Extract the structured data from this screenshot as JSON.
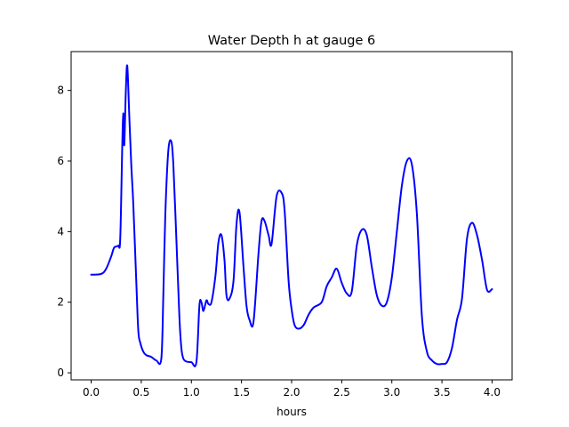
{
  "chart_data": {
    "type": "line",
    "title": "Water Depth h at gauge 6",
    "xlabel": "hours",
    "ylabel": "",
    "xlim": [
      -0.2,
      4.2
    ],
    "ylim": [
      -0.2,
      9.1
    ],
    "x_ticks": [
      0.0,
      0.5,
      1.0,
      1.5,
      2.0,
      2.5,
      3.0,
      3.5,
      4.0
    ],
    "x_tick_labels": [
      "0.0",
      "0.5",
      "1.0",
      "1.5",
      "2.0",
      "2.5",
      "3.0",
      "3.5",
      "4.0"
    ],
    "y_ticks": [
      0,
      2,
      4,
      6,
      8
    ],
    "y_tick_labels": [
      "0",
      "2",
      "4",
      "6",
      "8"
    ],
    "grid": false,
    "legend": "none",
    "line_color": "#0000ff",
    "series": [
      {
        "x": [
          0.0,
          0.1,
          0.15,
          0.2,
          0.23,
          0.27,
          0.29,
          0.31,
          0.32,
          0.33,
          0.345,
          0.36,
          0.38,
          0.4,
          0.42,
          0.45,
          0.47,
          0.49,
          0.52,
          0.55,
          0.6,
          0.65,
          0.7,
          0.72,
          0.74,
          0.77,
          0.8,
          0.82,
          0.85,
          0.88,
          0.9,
          0.92,
          0.95,
          1.0,
          1.05,
          1.08,
          1.1,
          1.12,
          1.15,
          1.17,
          1.2,
          1.24,
          1.27,
          1.3,
          1.33,
          1.35,
          1.38,
          1.42,
          1.45,
          1.48,
          1.52,
          1.55,
          1.58,
          1.62,
          1.67,
          1.7,
          1.73,
          1.77,
          1.8,
          1.85,
          1.9,
          1.93,
          1.97,
          2.0,
          2.03,
          2.07,
          2.12,
          2.17,
          2.22,
          2.3,
          2.35,
          2.4,
          2.45,
          2.5,
          2.55,
          2.6,
          2.65,
          2.7,
          2.75,
          2.8,
          2.85,
          2.9,
          2.95,
          3.0,
          3.05,
          3.1,
          3.15,
          3.2,
          3.25,
          3.3,
          3.35,
          3.4,
          3.45,
          3.5,
          3.55,
          3.6,
          3.65,
          3.7,
          3.75,
          3.8,
          3.85,
          3.9,
          3.95,
          4.0
        ],
        "y": [
          2.78,
          2.8,
          2.95,
          3.3,
          3.55,
          3.6,
          3.8,
          6.4,
          7.35,
          6.45,
          7.9,
          8.7,
          7.3,
          5.9,
          4.8,
          2.6,
          1.2,
          0.85,
          0.6,
          0.5,
          0.45,
          0.35,
          0.4,
          2.2,
          4.5,
          6.3,
          6.55,
          5.9,
          3.8,
          1.6,
          0.7,
          0.4,
          0.32,
          0.3,
          0.3,
          1.9,
          2.0,
          1.75,
          2.05,
          1.95,
          2.0,
          2.75,
          3.7,
          3.9,
          3.2,
          2.2,
          2.1,
          2.6,
          4.2,
          4.55,
          3.0,
          1.9,
          1.5,
          1.45,
          3.4,
          4.3,
          4.3,
          3.9,
          3.65,
          5.0,
          5.1,
          4.6,
          2.6,
          1.8,
          1.35,
          1.25,
          1.35,
          1.65,
          1.85,
          2.0,
          2.45,
          2.7,
          2.95,
          2.55,
          2.25,
          2.3,
          3.6,
          4.05,
          3.9,
          3.0,
          2.2,
          1.9,
          2.0,
          2.7,
          4.0,
          5.3,
          6.0,
          5.9,
          4.5,
          1.6,
          0.6,
          0.35,
          0.25,
          0.25,
          0.3,
          0.7,
          1.5,
          2.1,
          3.8,
          4.25,
          3.9,
          3.2,
          2.35,
          2.37
        ]
      }
    ]
  }
}
